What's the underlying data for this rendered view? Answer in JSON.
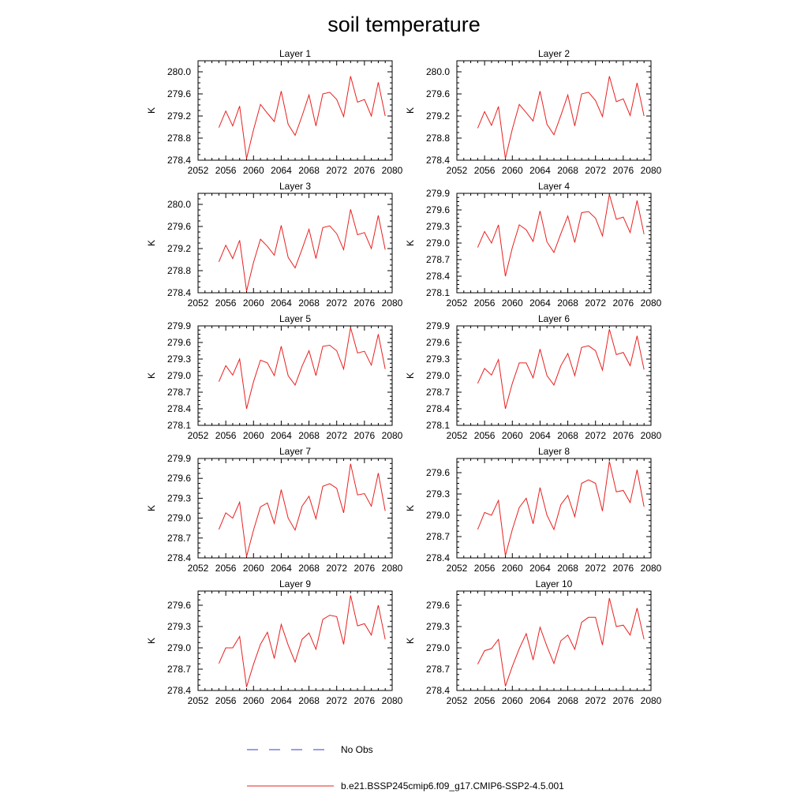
{
  "figure": {
    "title": "soil temperature"
  },
  "legend": {
    "items": [
      {
        "label": "No Obs",
        "color": "#3b3bcc",
        "style": "dashed"
      },
      {
        "label": "b.e21.BSSP245cmip6.f09_g17.CMIP6-SSP2-4.5.001",
        "color": "#e8201f",
        "style": "solid"
      }
    ]
  },
  "chart_data": [
    {
      "type": "line",
      "title": "Layer 1",
      "ylabel": "K",
      "xlim": [
        2052,
        2080
      ],
      "xticks": [
        2052,
        2056,
        2060,
        2064,
        2068,
        2072,
        2076,
        2080
      ],
      "xtick_labels": [
        "2052",
        "2056",
        "2060",
        "2064",
        "2068",
        "2072",
        "2076",
        "2080"
      ],
      "ylim": [
        278.4,
        280.2
      ],
      "yticks": [
        278.4,
        278.8,
        279.2,
        279.6,
        280.0
      ],
      "ytick_labels": [
        "278.4",
        "278.8",
        "279.2",
        "279.6",
        "280.0"
      ],
      "series": [
        {
          "color": "#e8201f",
          "x": [
            2055,
            2056,
            2057,
            2058,
            2059,
            2060,
            2061,
            2062,
            2063,
            2064,
            2065,
            2066,
            2067,
            2068,
            2069,
            2070,
            2071,
            2072,
            2073,
            2074,
            2075,
            2076,
            2077,
            2078,
            2079
          ],
          "values": [
            278.99,
            279.29,
            279.02,
            279.38,
            278.43,
            278.95,
            279.41,
            279.25,
            279.1,
            279.65,
            279.05,
            278.85,
            279.2,
            279.58,
            279.02,
            279.6,
            279.63,
            279.5,
            279.19,
            279.92,
            279.45,
            279.5,
            279.2,
            279.81,
            279.2
          ]
        }
      ]
    },
    {
      "type": "line",
      "title": "Layer 2",
      "ylabel": "K",
      "xlim": [
        2052,
        2080
      ],
      "xticks": [
        2052,
        2056,
        2060,
        2064,
        2068,
        2072,
        2076,
        2080
      ],
      "xtick_labels": [
        "2052",
        "2056",
        "2060",
        "2064",
        "2068",
        "2072",
        "2076",
        "2080"
      ],
      "ylim": [
        278.4,
        280.2
      ],
      "yticks": [
        278.4,
        278.8,
        279.2,
        279.6,
        280.0
      ],
      "ytick_labels": [
        "278.4",
        "278.8",
        "279.2",
        "279.6",
        "280.0"
      ],
      "series": [
        {
          "color": "#e8201f",
          "x": [
            2055,
            2056,
            2057,
            2058,
            2059,
            2060,
            2061,
            2062,
            2063,
            2064,
            2065,
            2066,
            2067,
            2068,
            2069,
            2070,
            2071,
            2072,
            2073,
            2074,
            2075,
            2076,
            2077,
            2078,
            2079
          ],
          "values": [
            278.98,
            279.28,
            279.03,
            279.37,
            278.43,
            278.96,
            279.41,
            279.26,
            279.11,
            279.65,
            279.05,
            278.86,
            279.21,
            279.58,
            279.02,
            279.6,
            279.63,
            279.48,
            279.19,
            279.92,
            279.46,
            279.51,
            279.21,
            279.8,
            279.2
          ]
        }
      ]
    },
    {
      "type": "line",
      "title": "Layer 3",
      "ylabel": "K",
      "xlim": [
        2052,
        2080
      ],
      "xticks": [
        2052,
        2056,
        2060,
        2064,
        2068,
        2072,
        2076,
        2080
      ],
      "xtick_labels": [
        "2052",
        "2056",
        "2060",
        "2064",
        "2068",
        "2072",
        "2076",
        "2080"
      ],
      "ylim": [
        278.4,
        280.2
      ],
      "yticks": [
        278.4,
        278.8,
        279.2,
        279.6,
        280.0
      ],
      "ytick_labels": [
        "278.4",
        "278.8",
        "279.2",
        "279.6",
        "280.0"
      ],
      "series": [
        {
          "color": "#e8201f",
          "x": [
            2055,
            2056,
            2057,
            2058,
            2059,
            2060,
            2061,
            2062,
            2063,
            2064,
            2065,
            2066,
            2067,
            2068,
            2069,
            2070,
            2071,
            2072,
            2073,
            2074,
            2075,
            2076,
            2077,
            2078,
            2079
          ],
          "values": [
            278.96,
            279.26,
            279.02,
            279.35,
            278.43,
            278.95,
            279.37,
            279.24,
            279.08,
            279.62,
            279.04,
            278.85,
            279.19,
            279.55,
            279.02,
            279.58,
            279.61,
            279.47,
            279.18,
            279.91,
            279.45,
            279.49,
            279.2,
            279.8,
            279.18
          ]
        }
      ]
    },
    {
      "type": "line",
      "title": "Layer 4",
      "ylabel": "K",
      "xlim": [
        2052,
        2080
      ],
      "xticks": [
        2052,
        2056,
        2060,
        2064,
        2068,
        2072,
        2076,
        2080
      ],
      "xtick_labels": [
        "2052",
        "2056",
        "2060",
        "2064",
        "2068",
        "2072",
        "2076",
        "2080"
      ],
      "ylim": [
        278.1,
        279.9
      ],
      "yticks": [
        278.1,
        278.4,
        278.7,
        279.0,
        279.3,
        279.6,
        279.9
      ],
      "ytick_labels": [
        "278.1",
        "278.4",
        "278.7",
        "279.0",
        "279.3",
        "279.6",
        "279.9"
      ],
      "series": [
        {
          "color": "#e8201f",
          "x": [
            2055,
            2056,
            2057,
            2058,
            2059,
            2060,
            2061,
            2062,
            2063,
            2064,
            2065,
            2066,
            2067,
            2068,
            2069,
            2070,
            2071,
            2072,
            2073,
            2074,
            2075,
            2076,
            2077,
            2078,
            2079
          ],
          "values": [
            278.92,
            279.21,
            279.0,
            279.33,
            278.4,
            278.92,
            279.33,
            279.24,
            279.03,
            279.58,
            279.02,
            278.83,
            279.17,
            279.49,
            279.01,
            279.55,
            279.57,
            279.45,
            279.13,
            279.88,
            279.43,
            279.47,
            279.19,
            279.77,
            279.16
          ]
        }
      ]
    },
    {
      "type": "line",
      "title": "Layer 5",
      "ylabel": "K",
      "xlim": [
        2052,
        2080
      ],
      "xticks": [
        2052,
        2056,
        2060,
        2064,
        2068,
        2072,
        2076,
        2080
      ],
      "xtick_labels": [
        "2052",
        "2056",
        "2060",
        "2064",
        "2068",
        "2072",
        "2076",
        "2080"
      ],
      "ylim": [
        278.1,
        279.9
      ],
      "yticks": [
        278.1,
        278.4,
        278.7,
        279.0,
        279.3,
        279.6,
        279.9
      ],
      "ytick_labels": [
        "278.1",
        "278.4",
        "278.7",
        "279.0",
        "279.3",
        "279.6",
        "279.9"
      ],
      "series": [
        {
          "color": "#e8201f",
          "x": [
            2055,
            2056,
            2057,
            2058,
            2059,
            2060,
            2061,
            2062,
            2063,
            2064,
            2065,
            2066,
            2067,
            2068,
            2069,
            2070,
            2071,
            2072,
            2073,
            2074,
            2075,
            2076,
            2077,
            2078,
            2079
          ],
          "values": [
            278.89,
            279.18,
            279.01,
            279.3,
            278.4,
            278.89,
            279.28,
            279.23,
            279.0,
            279.53,
            279.0,
            278.83,
            279.17,
            279.45,
            279.0,
            279.53,
            279.55,
            279.45,
            279.12,
            279.87,
            279.41,
            279.44,
            279.19,
            279.75,
            279.12
          ]
        }
      ]
    },
    {
      "type": "line",
      "title": "Layer 6",
      "ylabel": "K",
      "xlim": [
        2052,
        2080
      ],
      "xticks": [
        2052,
        2056,
        2060,
        2064,
        2068,
        2072,
        2076,
        2080
      ],
      "xtick_labels": [
        "2052",
        "2056",
        "2060",
        "2064",
        "2068",
        "2072",
        "2076",
        "2080"
      ],
      "ylim": [
        278.1,
        279.9
      ],
      "yticks": [
        278.1,
        278.4,
        278.7,
        279.0,
        279.3,
        279.6,
        279.9
      ],
      "ytick_labels": [
        "278.1",
        "278.4",
        "278.7",
        "279.0",
        "279.3",
        "279.6",
        "279.9"
      ],
      "series": [
        {
          "color": "#e8201f",
          "x": [
            2055,
            2056,
            2057,
            2058,
            2059,
            2060,
            2061,
            2062,
            2063,
            2064,
            2065,
            2066,
            2067,
            2068,
            2069,
            2070,
            2071,
            2072,
            2073,
            2074,
            2075,
            2076,
            2077,
            2078,
            2079
          ],
          "values": [
            278.86,
            279.13,
            279.01,
            279.29,
            278.4,
            278.86,
            279.23,
            279.23,
            278.96,
            279.48,
            279.0,
            278.83,
            279.18,
            279.4,
            279.0,
            279.51,
            279.54,
            279.45,
            279.1,
            279.84,
            279.38,
            279.42,
            279.18,
            279.72,
            279.11
          ]
        }
      ]
    },
    {
      "type": "line",
      "title": "Layer 7",
      "ylabel": "K",
      "xlim": [
        2052,
        2080
      ],
      "xticks": [
        2052,
        2056,
        2060,
        2064,
        2068,
        2072,
        2076,
        2080
      ],
      "xtick_labels": [
        "2052",
        "2056",
        "2060",
        "2064",
        "2068",
        "2072",
        "2076",
        "2080"
      ],
      "ylim": [
        278.4,
        279.9
      ],
      "yticks": [
        278.4,
        278.7,
        279.0,
        279.3,
        279.6,
        279.9
      ],
      "ytick_labels": [
        "278.4",
        "278.7",
        "279.0",
        "279.3",
        "279.6",
        "279.9"
      ],
      "series": [
        {
          "color": "#e8201f",
          "x": [
            2055,
            2056,
            2057,
            2058,
            2059,
            2060,
            2061,
            2062,
            2063,
            2064,
            2065,
            2066,
            2067,
            2068,
            2069,
            2070,
            2071,
            2072,
            2073,
            2074,
            2075,
            2076,
            2077,
            2078,
            2079
          ],
          "values": [
            278.83,
            279.08,
            279.0,
            279.24,
            278.42,
            278.82,
            279.17,
            279.23,
            278.92,
            279.43,
            279.0,
            278.82,
            279.18,
            279.33,
            278.99,
            279.48,
            279.52,
            279.45,
            279.08,
            279.82,
            279.35,
            279.37,
            279.18,
            279.68,
            279.11
          ]
        }
      ]
    },
    {
      "type": "line",
      "title": "Layer 8",
      "ylabel": "K",
      "xlim": [
        2052,
        2080
      ],
      "xticks": [
        2052,
        2056,
        2060,
        2064,
        2068,
        2072,
        2076,
        2080
      ],
      "xtick_labels": [
        "2052",
        "2056",
        "2060",
        "2064",
        "2068",
        "2072",
        "2076",
        "2080"
      ],
      "ylim": [
        278.4,
        279.8
      ],
      "yticks": [
        278.4,
        278.7,
        279.0,
        279.3,
        279.6
      ],
      "ytick_labels": [
        "278.4",
        "278.7",
        "279.0",
        "279.3",
        "279.6"
      ],
      "series": [
        {
          "color": "#e8201f",
          "x": [
            2055,
            2056,
            2057,
            2058,
            2059,
            2060,
            2061,
            2062,
            2063,
            2064,
            2065,
            2066,
            2067,
            2068,
            2069,
            2070,
            2071,
            2072,
            2073,
            2074,
            2075,
            2076,
            2077,
            2078,
            2079
          ],
          "values": [
            278.8,
            279.04,
            279.0,
            279.21,
            278.43,
            278.8,
            279.11,
            279.24,
            278.88,
            279.39,
            279.0,
            278.8,
            279.15,
            279.28,
            278.98,
            279.45,
            279.5,
            279.45,
            279.06,
            279.76,
            279.33,
            279.35,
            279.18,
            279.64,
            279.12
          ]
        }
      ]
    },
    {
      "type": "line",
      "title": "Layer 9",
      "ylabel": "K",
      "xlim": [
        2052,
        2080
      ],
      "xticks": [
        2052,
        2056,
        2060,
        2064,
        2068,
        2072,
        2076,
        2080
      ],
      "xtick_labels": [
        "2052",
        "2056",
        "2060",
        "2064",
        "2068",
        "2072",
        "2076",
        "2080"
      ],
      "ylim": [
        278.4,
        279.8
      ],
      "yticks": [
        278.4,
        278.7,
        279.0,
        279.3,
        279.6
      ],
      "ytick_labels": [
        "278.4",
        "278.7",
        "279.0",
        "279.3",
        "279.6"
      ],
      "series": [
        {
          "color": "#e8201f",
          "x": [
            2055,
            2056,
            2057,
            2058,
            2059,
            2060,
            2061,
            2062,
            2063,
            2064,
            2065,
            2066,
            2067,
            2068,
            2069,
            2070,
            2071,
            2072,
            2073,
            2074,
            2075,
            2076,
            2077,
            2078,
            2079
          ],
          "values": [
            278.78,
            279.0,
            279.0,
            279.16,
            278.45,
            278.77,
            279.05,
            279.22,
            278.85,
            279.33,
            279.04,
            278.8,
            279.12,
            279.21,
            278.98,
            279.4,
            279.46,
            279.44,
            279.05,
            279.74,
            279.31,
            279.34,
            279.18,
            279.6,
            279.12
          ]
        }
      ]
    },
    {
      "type": "line",
      "title": "Layer 10",
      "ylabel": "K",
      "xlim": [
        2052,
        2080
      ],
      "xticks": [
        2052,
        2056,
        2060,
        2064,
        2068,
        2072,
        2076,
        2080
      ],
      "xtick_labels": [
        "2052",
        "2056",
        "2060",
        "2064",
        "2068",
        "2072",
        "2076",
        "2080"
      ],
      "ylim": [
        278.4,
        279.8
      ],
      "yticks": [
        278.4,
        278.7,
        279.0,
        279.3,
        279.6
      ],
      "ytick_labels": [
        "278.4",
        "278.7",
        "279.0",
        "279.3",
        "279.6"
      ],
      "series": [
        {
          "color": "#e8201f",
          "x": [
            2055,
            2056,
            2057,
            2058,
            2059,
            2060,
            2061,
            2062,
            2063,
            2064,
            2065,
            2066,
            2067,
            2068,
            2069,
            2070,
            2071,
            2072,
            2073,
            2074,
            2075,
            2076,
            2077,
            2078,
            2079
          ],
          "values": [
            278.77,
            278.96,
            278.99,
            279.12,
            278.46,
            278.74,
            278.99,
            279.2,
            278.83,
            279.29,
            279.02,
            278.78,
            279.1,
            279.18,
            278.98,
            279.36,
            279.43,
            279.43,
            279.04,
            279.7,
            279.3,
            279.32,
            279.18,
            279.56,
            279.12
          ]
        }
      ]
    }
  ]
}
